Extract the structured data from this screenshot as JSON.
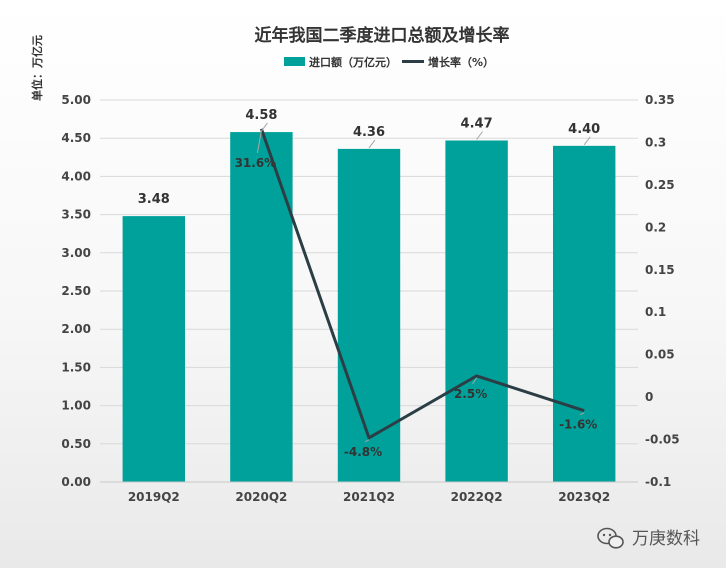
{
  "chart_data": {
    "type": "bar",
    "title": "近年我国二季度进口总额及增长率",
    "unit_label": "单位：万亿元",
    "categories": [
      "2019Q2",
      "2020Q2",
      "2021Q2",
      "2022Q2",
      "2023Q2"
    ],
    "series": [
      {
        "name": "进口额（万亿元）",
        "type": "bar",
        "axis": "left",
        "color": "#00A19A",
        "values": [
          3.48,
          4.58,
          4.36,
          4.47,
          4.4
        ],
        "labels": [
          "3.48",
          "4.58",
          "4.36",
          "4.47",
          "4.40"
        ]
      },
      {
        "name": "增长率（%）",
        "type": "line",
        "axis": "right",
        "color": "#2C3E45",
        "values": [
          null,
          0.316,
          -0.048,
          0.025,
          -0.016
        ],
        "labels": [
          "",
          "31.6%",
          "-4.8%",
          "2.5%",
          "-1.6%"
        ]
      }
    ],
    "y_left": {
      "min": 0,
      "max": 5,
      "step": 0.5,
      "ticks": [
        "0.00",
        "0.50",
        "1.00",
        "1.50",
        "2.00",
        "2.50",
        "3.00",
        "3.50",
        "4.00",
        "4.50",
        "5.00"
      ]
    },
    "y_right": {
      "min": -0.1,
      "max": 0.35,
      "step": 0.05,
      "ticks": [
        "-0.1",
        "-0.05",
        "0",
        "0.05",
        "0.1",
        "0.15",
        "0.2",
        "0.25",
        "0.3",
        "0.35"
      ]
    },
    "grid": true,
    "legend_position": "top-center"
  },
  "watermark": {
    "text": "万庚数科",
    "icon": "wechat-icon"
  }
}
